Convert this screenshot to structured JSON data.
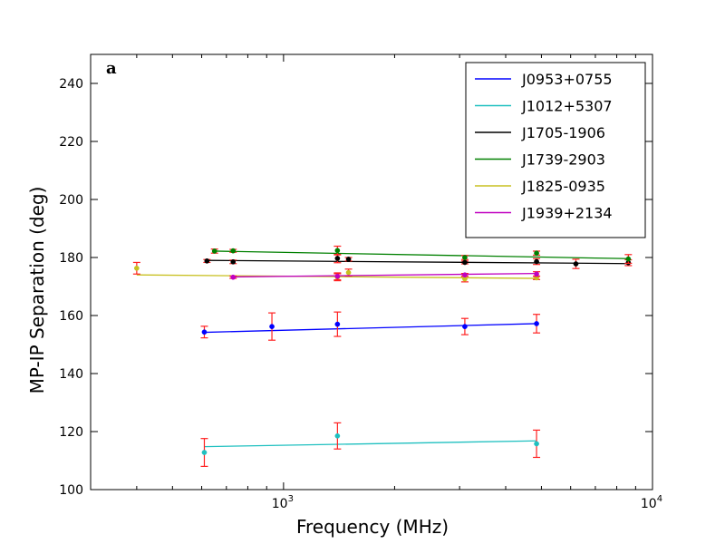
{
  "chart_data": {
    "type": "scatter",
    "panel_label": "a",
    "xlabel": "Frequency (MHz)",
    "ylabel": "MP-IP Separation (deg)",
    "xscale": "log",
    "xlim": [
      300,
      10000
    ],
    "ylim": [
      100,
      250
    ],
    "xticks": [
      {
        "value": 1000,
        "base": "10",
        "exp": "3"
      },
      {
        "value": 10000,
        "base": "10",
        "exp": "4"
      }
    ],
    "yticks": [
      100,
      120,
      140,
      160,
      180,
      200,
      220,
      240
    ],
    "errorbar_color": "#ff2020",
    "legend_position": "upper right",
    "series": [
      {
        "name": "J0953+0755",
        "color": "#0000ff",
        "points": [
          [
            610,
            154.3,
            2.0
          ],
          [
            930,
            156.2,
            4.7
          ],
          [
            1400,
            157.0,
            4.2
          ],
          [
            3100,
            156.2,
            2.8
          ],
          [
            4850,
            157.2,
            3.2
          ]
        ],
        "fit": [
          [
            610,
            154.2
          ],
          [
            4850,
            157.2
          ]
        ]
      },
      {
        "name": "J1012+5307",
        "color": "#20c0c0",
        "points": [
          [
            610,
            112.8,
            4.8
          ],
          [
            1400,
            118.5,
            4.5
          ],
          [
            4850,
            115.8,
            4.7
          ]
        ],
        "fit": [
          [
            610,
            114.8
          ],
          [
            4850,
            116.8
          ]
        ]
      },
      {
        "name": "J1705-1906",
        "color": "#000000",
        "points": [
          [
            620,
            178.8,
            0.5
          ],
          [
            730,
            178.5,
            0.6
          ],
          [
            1400,
            179.7,
            1.5
          ],
          [
            1500,
            179.4,
            0.6
          ],
          [
            3100,
            178.3,
            0.5
          ],
          [
            4850,
            178.6,
            1.0
          ],
          [
            6200,
            177.8,
            1.6
          ],
          [
            8600,
            178.2,
            1.0
          ]
        ],
        "fit": [
          [
            620,
            179.0
          ],
          [
            8600,
            177.9
          ]
        ]
      },
      {
        "name": "J1739-2903",
        "color": "#008000",
        "points": [
          [
            650,
            182.2,
            0.7
          ],
          [
            730,
            182.3,
            0.5
          ],
          [
            1400,
            182.4,
            1.5
          ],
          [
            3100,
            180.0,
            0.7
          ],
          [
            4850,
            181.5,
            0.7
          ],
          [
            8600,
            179.5,
            1.5
          ]
        ],
        "fit": [
          [
            650,
            182.2
          ],
          [
            8600,
            179.6
          ]
        ]
      },
      {
        "name": "J1825-0935",
        "color": "#c8c020",
        "points": [
          [
            400,
            176.3,
            2.0
          ],
          [
            1400,
            173.2,
            1.2
          ],
          [
            1500,
            174.8,
            1.2
          ],
          [
            3100,
            172.6,
            1.0
          ],
          [
            4850,
            173.0,
            0.6
          ]
        ],
        "fit": [
          [
            400,
            174.0
          ],
          [
            4850,
            172.8
          ]
        ]
      },
      {
        "name": "J1939+2134",
        "color": "#c000c0",
        "points": [
          [
            730,
            173.2,
            0.4
          ],
          [
            1400,
            173.5,
            1.2
          ],
          [
            3100,
            174.0,
            0.5
          ],
          [
            4850,
            174.3,
            0.8
          ]
        ],
        "fit": [
          [
            730,
            173.3
          ],
          [
            4850,
            174.5
          ]
        ]
      }
    ]
  }
}
